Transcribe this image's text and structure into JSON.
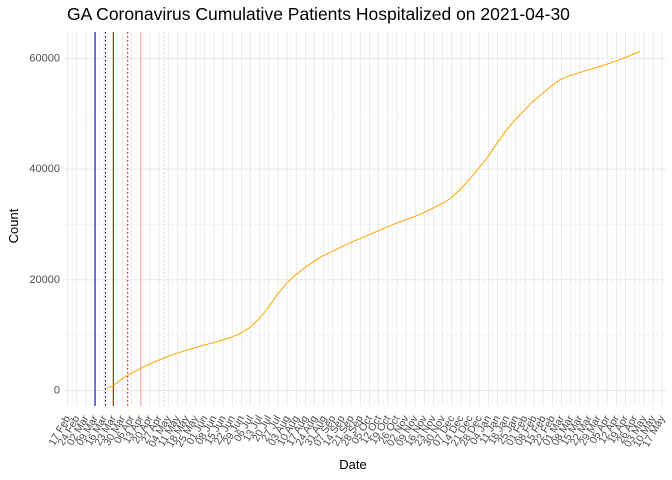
{
  "chart_data": {
    "type": "line",
    "title": "GA Coronavirus Cumulative Patients Hospitalized on 2021-04-30",
    "xlabel": "Date",
    "ylabel": "Count",
    "x_range": [
      "2020-02-15",
      "2021-05-20"
    ],
    "ylim": [
      -2800,
      64800
    ],
    "y_ticks": [
      0,
      20000,
      40000,
      60000
    ],
    "y_tick_labels": [
      "0",
      "20000",
      "40000",
      "60000"
    ],
    "x_tick_labels": [
      "17 Feb",
      "24 Feb",
      "02 Mar",
      "09 Mar",
      "16 Mar",
      "23 Mar",
      "30 Mar",
      "06 Apr",
      "13 Apr",
      "20 Apr",
      "27 Apr",
      "04 May",
      "11 May",
      "18 May",
      "25 May",
      "01 Jun",
      "08 Jun",
      "15 Jun",
      "22 Jun",
      "29 Jun",
      "06 Jul",
      "13 Jul",
      "20 Jul",
      "27 Jul",
      "03 Aug",
      "10 Aug",
      "17 Aug",
      "24 Aug",
      "31 Aug",
      "07 Sep",
      "14 Sep",
      "21 Sep",
      "28 Sep",
      "05 Oct",
      "12 Oct",
      "19 Oct",
      "26 Oct",
      "02 Nov",
      "09 Nov",
      "16 Nov",
      "23 Nov",
      "30 Nov",
      "07 Dec",
      "14 Dec",
      "21 Dec",
      "28 Dec",
      "04 Jan",
      "11 Jan",
      "18 Jan",
      "25 Jan",
      "01 Feb",
      "08 Feb",
      "15 Feb",
      "22 Feb",
      "01 Mar",
      "08 Mar",
      "15 Mar",
      "22 Mar",
      "29 Mar",
      "05 Apr",
      "12 Apr",
      "19 Apr",
      "26 Apr",
      "03 May",
      "10 May",
      "17 May"
    ],
    "grid": true,
    "series": [
      {
        "color": "#FFA500",
        "points": [
          [
            "2020-03-18",
            400
          ],
          [
            "2020-03-22",
            800
          ],
          [
            "2020-03-26",
            1400
          ],
          [
            "2020-03-30",
            2200
          ],
          [
            "2020-04-05",
            3000
          ],
          [
            "2020-04-12",
            3900
          ],
          [
            "2020-04-19",
            4700
          ],
          [
            "2020-04-26",
            5400
          ],
          [
            "2020-05-03",
            6100
          ],
          [
            "2020-05-10",
            6700
          ],
          [
            "2020-05-17",
            7200
          ],
          [
            "2020-05-24",
            7700
          ],
          [
            "2020-05-31",
            8200
          ],
          [
            "2020-06-07",
            8600
          ],
          [
            "2020-06-14",
            9100
          ],
          [
            "2020-06-21",
            9600
          ],
          [
            "2020-06-28",
            10300
          ],
          [
            "2020-07-05",
            11300
          ],
          [
            "2020-07-12",
            12800
          ],
          [
            "2020-07-19",
            14800
          ],
          [
            "2020-07-26",
            17200
          ],
          [
            "2020-08-02",
            19200
          ],
          [
            "2020-08-09",
            20800
          ],
          [
            "2020-08-16",
            22100
          ],
          [
            "2020-08-23",
            23300
          ],
          [
            "2020-08-30",
            24300
          ],
          [
            "2020-09-06",
            25100
          ],
          [
            "2020-09-13",
            25900
          ],
          [
            "2020-09-20",
            26700
          ],
          [
            "2020-09-27",
            27400
          ],
          [
            "2020-10-04",
            28100
          ],
          [
            "2020-10-11",
            28800
          ],
          [
            "2020-10-18",
            29500
          ],
          [
            "2020-10-25",
            30200
          ],
          [
            "2020-11-01",
            30800
          ],
          [
            "2020-11-08",
            31400
          ],
          [
            "2020-11-15",
            32100
          ],
          [
            "2020-11-22",
            32900
          ],
          [
            "2020-11-29",
            33700
          ],
          [
            "2020-12-06",
            34700
          ],
          [
            "2020-12-13",
            36200
          ],
          [
            "2020-12-20",
            38000
          ],
          [
            "2020-12-27",
            40000
          ],
          [
            "2021-01-03",
            42000
          ],
          [
            "2021-01-10",
            44500
          ],
          [
            "2021-01-17",
            46800
          ],
          [
            "2021-01-24",
            48800
          ],
          [
            "2021-01-31",
            50500
          ],
          [
            "2021-02-07",
            52200
          ],
          [
            "2021-02-14",
            53600
          ],
          [
            "2021-02-21",
            55000
          ],
          [
            "2021-02-28",
            56200
          ],
          [
            "2021-03-07",
            56900
          ],
          [
            "2021-03-14",
            57400
          ],
          [
            "2021-03-21",
            57900
          ],
          [
            "2021-03-28",
            58400
          ],
          [
            "2021-04-04",
            58900
          ],
          [
            "2021-04-11",
            59500
          ],
          [
            "2021-04-18",
            60100
          ],
          [
            "2021-04-25",
            60800
          ],
          [
            "2021-04-30",
            61300
          ]
        ]
      }
    ],
    "reference_lines": [
      {
        "date": "2020-03-09",
        "color": "#0000CC",
        "style": "solid"
      },
      {
        "date": "2020-03-17",
        "color": "#000066",
        "style": "dotted"
      },
      {
        "date": "2020-03-23",
        "color": "#CC0000",
        "style": "solid"
      },
      {
        "date": "2020-04-03",
        "color": "#CC0000",
        "style": "dotted"
      },
      {
        "date": "2020-04-13",
        "color": "#F4A6A6",
        "style": "solid"
      },
      {
        "date": "2020-05-01",
        "color": "#D8D8D8",
        "style": "dotted"
      }
    ]
  }
}
